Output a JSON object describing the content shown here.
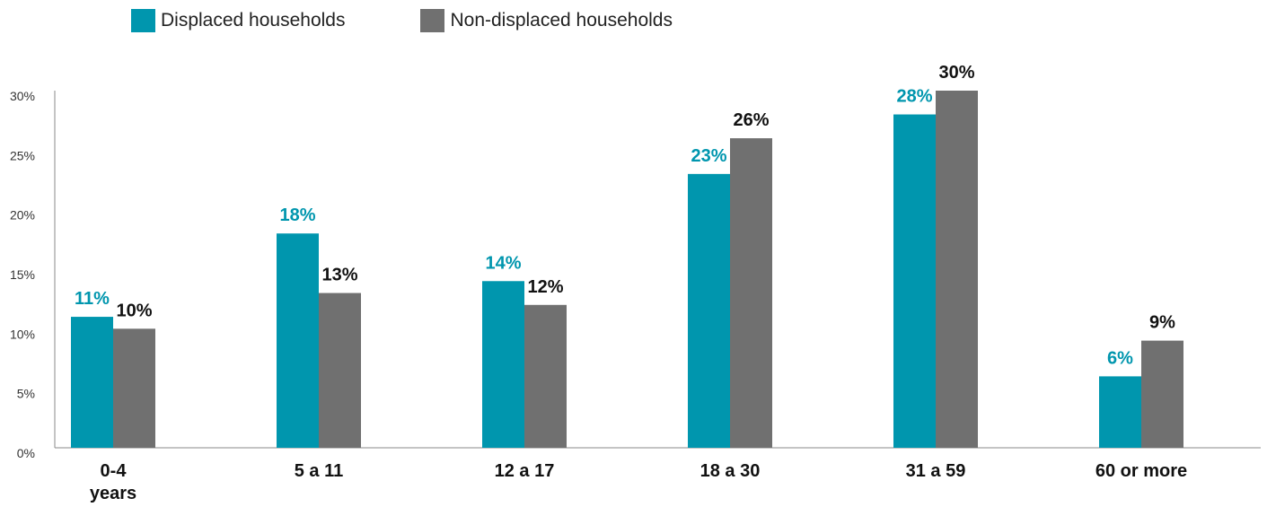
{
  "colors": {
    "displaced": "#0096AE",
    "non_displaced": "#707070",
    "non_displaced_label": "#111111",
    "axis": "#888888"
  },
  "legend": {
    "displaced_label": "Displaced households",
    "non_displaced_label": "Non-displaced households"
  },
  "chart_data": {
    "type": "bar",
    "title": "",
    "xlabel": "",
    "ylabel": "",
    "categories": [
      "0-4 years",
      "5 a 11",
      "12 a 17",
      "18 a 30",
      "31 a 59",
      "60 or more"
    ],
    "ylim": [
      0,
      30
    ],
    "yticks": [
      "0%",
      "5%",
      "10%",
      "15%",
      "20%",
      "25%",
      "30%"
    ],
    "grid": false,
    "legend_position": "top-left",
    "series": [
      {
        "name": "Displaced households",
        "values": [
          11,
          18,
          14,
          23,
          28,
          6
        ],
        "labels": [
          "11%",
          "18%",
          "14%",
          "23%",
          "28%",
          "6%"
        ]
      },
      {
        "name": "Non-displaced households",
        "values": [
          10,
          13,
          12,
          26,
          30,
          9
        ],
        "labels": [
          "10%",
          "13%",
          "12%",
          "26%",
          "30%",
          "9%"
        ]
      }
    ]
  }
}
